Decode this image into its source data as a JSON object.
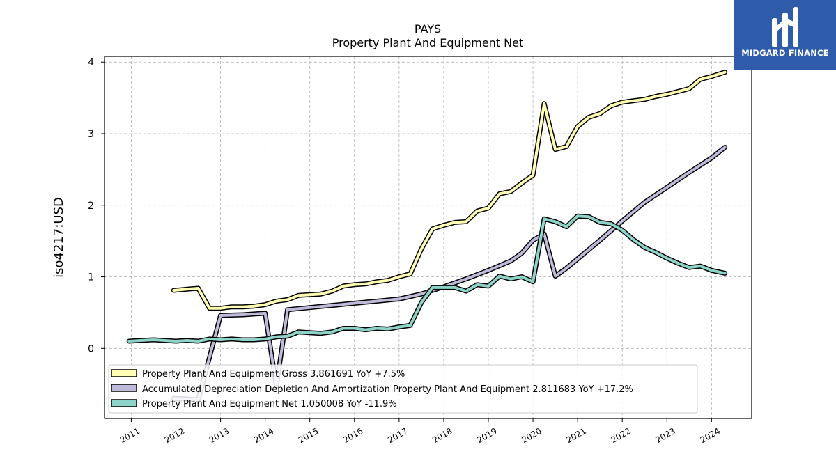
{
  "brand": {
    "name": "MIDGARD FINANCE",
    "background": "#2e5caa"
  },
  "chart_data": {
    "type": "line",
    "title": "PAYS",
    "subtitle": "Property Plant And Equipment Net",
    "xlabel": "",
    "ylabel": "iso4217:USD",
    "xlim": [
      2010.4,
      2024.9
    ],
    "ylim": [
      -0.98,
      4.08
    ],
    "x_ticks": [
      "2011",
      "2012",
      "2013",
      "2014",
      "2015",
      "2016",
      "2017",
      "2018",
      "2019",
      "2020",
      "2021",
      "2022",
      "2023",
      "2024"
    ],
    "y_ticks": [
      0,
      1,
      2,
      3,
      4
    ],
    "grid": true,
    "legend_position": "lower-left",
    "series": [
      {
        "name": "Property Plant And Equipment Gross",
        "legend_label": "Property Plant And Equipment Gross  3.861691 YoY +7.5%",
        "color": "#ffffb3",
        "points": [
          [
            2011.95,
            0.81
          ],
          [
            2012.3,
            0.83
          ],
          [
            2012.5,
            0.84
          ],
          [
            2012.75,
            0.56
          ],
          [
            2013.0,
            0.56
          ],
          [
            2013.25,
            0.58
          ],
          [
            2013.5,
            0.58
          ],
          [
            2013.75,
            0.59
          ],
          [
            2014.0,
            0.61
          ],
          [
            2014.25,
            0.66
          ],
          [
            2014.5,
            0.68
          ],
          [
            2014.75,
            0.74
          ],
          [
            2015.0,
            0.75
          ],
          [
            2015.25,
            0.76
          ],
          [
            2015.5,
            0.8
          ],
          [
            2015.75,
            0.87
          ],
          [
            2016.0,
            0.89
          ],
          [
            2016.25,
            0.9
          ],
          [
            2016.5,
            0.93
          ],
          [
            2016.75,
            0.95
          ],
          [
            2017.0,
            1.0
          ],
          [
            2017.25,
            1.04
          ],
          [
            2017.5,
            1.39
          ],
          [
            2017.75,
            1.67
          ],
          [
            2018.0,
            1.72
          ],
          [
            2018.25,
            1.76
          ],
          [
            2018.5,
            1.77
          ],
          [
            2018.75,
            1.92
          ],
          [
            2019.0,
            1.96
          ],
          [
            2019.25,
            2.16
          ],
          [
            2019.5,
            2.19
          ],
          [
            2019.75,
            2.31
          ],
          [
            2020.0,
            2.42
          ],
          [
            2020.25,
            3.42
          ],
          [
            2020.5,
            2.78
          ],
          [
            2020.75,
            2.82
          ],
          [
            2021.0,
            3.1
          ],
          [
            2021.25,
            3.23
          ],
          [
            2021.5,
            3.28
          ],
          [
            2021.75,
            3.39
          ],
          [
            2022.0,
            3.44
          ],
          [
            2022.25,
            3.46
          ],
          [
            2022.5,
            3.48
          ],
          [
            2022.75,
            3.52
          ],
          [
            2023.0,
            3.55
          ],
          [
            2023.25,
            3.59
          ],
          [
            2023.5,
            3.63
          ],
          [
            2023.75,
            3.76
          ],
          [
            2024.0,
            3.8
          ],
          [
            2024.3,
            3.86
          ]
        ]
      },
      {
        "name": "Accumulated Depreciation Depletion And Amortization Property Plant And Equipment",
        "legend_label": "Accumulated Depreciation Depletion And Amortization Property Plant And Equipment  2.811683 YoY +17.2%",
        "color": "#bebada",
        "points": [
          [
            2011.95,
            -0.7
          ],
          [
            2012.3,
            -0.71
          ],
          [
            2012.5,
            -0.72
          ],
          [
            2013.0,
            0.46
          ],
          [
            2013.5,
            0.47
          ],
          [
            2014.0,
            0.49
          ],
          [
            2014.25,
            -0.53
          ],
          [
            2014.5,
            0.54
          ],
          [
            2015.0,
            0.57
          ],
          [
            2015.5,
            0.6
          ],
          [
            2016.0,
            0.63
          ],
          [
            2016.5,
            0.66
          ],
          [
            2017.0,
            0.69
          ],
          [
            2017.5,
            0.76
          ],
          [
            2018.0,
            0.86
          ],
          [
            2018.5,
            0.97
          ],
          [
            2019.0,
            1.09
          ],
          [
            2019.5,
            1.22
          ],
          [
            2019.75,
            1.33
          ],
          [
            2020.0,
            1.51
          ],
          [
            2020.25,
            1.6
          ],
          [
            2020.5,
            1.01
          ],
          [
            2020.75,
            1.12
          ],
          [
            2021.0,
            1.25
          ],
          [
            2021.5,
            1.51
          ],
          [
            2022.0,
            1.78
          ],
          [
            2022.5,
            2.04
          ],
          [
            2023.0,
            2.25
          ],
          [
            2023.5,
            2.46
          ],
          [
            2024.0,
            2.66
          ],
          [
            2024.3,
            2.81
          ]
        ]
      },
      {
        "name": "Property Plant And Equipment Net",
        "legend_label": "Property Plant And Equipment Net  1.050008 YoY -11.9%",
        "color": "#8dd3c7",
        "points": [
          [
            2010.95,
            0.1
          ],
          [
            2011.2,
            0.11
          ],
          [
            2011.5,
            0.12
          ],
          [
            2011.75,
            0.11
          ],
          [
            2012.0,
            0.1
          ],
          [
            2012.25,
            0.11
          ],
          [
            2012.5,
            0.1
          ],
          [
            2012.75,
            0.13
          ],
          [
            2013.0,
            0.12
          ],
          [
            2013.25,
            0.13
          ],
          [
            2013.5,
            0.12
          ],
          [
            2013.75,
            0.12
          ],
          [
            2014.0,
            0.13
          ],
          [
            2014.25,
            0.16
          ],
          [
            2014.5,
            0.17
          ],
          [
            2014.75,
            0.23
          ],
          [
            2015.0,
            0.22
          ],
          [
            2015.25,
            0.21
          ],
          [
            2015.5,
            0.23
          ],
          [
            2015.75,
            0.28
          ],
          [
            2016.0,
            0.28
          ],
          [
            2016.25,
            0.26
          ],
          [
            2016.5,
            0.28
          ],
          [
            2016.75,
            0.27
          ],
          [
            2017.0,
            0.3
          ],
          [
            2017.25,
            0.32
          ],
          [
            2017.5,
            0.64
          ],
          [
            2017.75,
            0.85
          ],
          [
            2018.0,
            0.85
          ],
          [
            2018.25,
            0.85
          ],
          [
            2018.5,
            0.8
          ],
          [
            2018.75,
            0.89
          ],
          [
            2019.0,
            0.87
          ],
          [
            2019.25,
            1.01
          ],
          [
            2019.5,
            0.97
          ],
          [
            2019.75,
            1.0
          ],
          [
            2020.0,
            0.93
          ],
          [
            2020.25,
            1.81
          ],
          [
            2020.5,
            1.77
          ],
          [
            2020.75,
            1.7
          ],
          [
            2021.0,
            1.85
          ],
          [
            2021.25,
            1.84
          ],
          [
            2021.5,
            1.76
          ],
          [
            2021.75,
            1.74
          ],
          [
            2022.0,
            1.65
          ],
          [
            2022.25,
            1.52
          ],
          [
            2022.5,
            1.41
          ],
          [
            2022.75,
            1.34
          ],
          [
            2023.0,
            1.26
          ],
          [
            2023.25,
            1.19
          ],
          [
            2023.5,
            1.13
          ],
          [
            2023.75,
            1.15
          ],
          [
            2024.0,
            1.09
          ],
          [
            2024.3,
            1.05
          ]
        ]
      }
    ]
  }
}
